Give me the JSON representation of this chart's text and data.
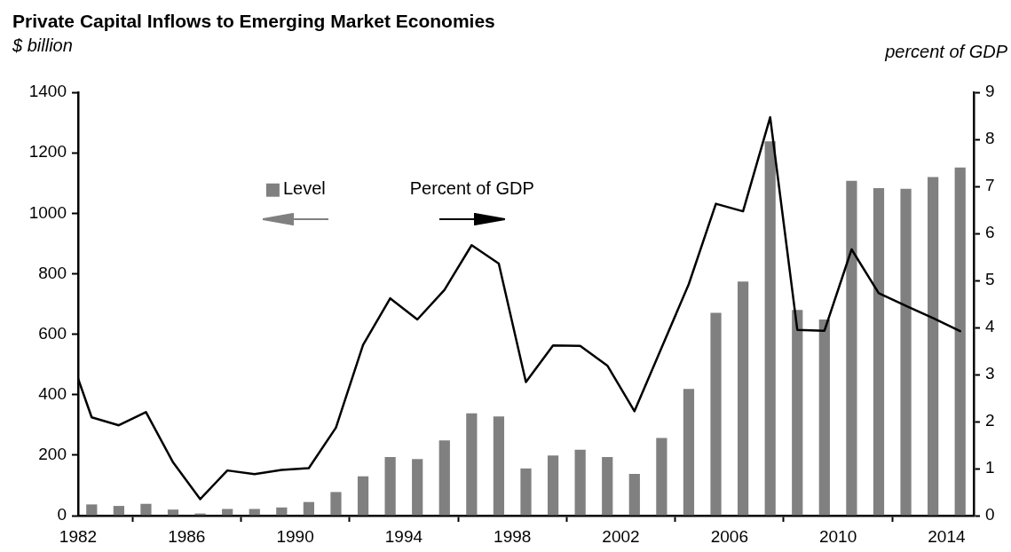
{
  "chart_data": {
    "type": "bar",
    "title": "Private Capital Inflows to Emerging Market Economies",
    "ylabel": "$ billion",
    "y2label": "percent of GDP",
    "xlim": [
      1982,
      2015
    ],
    "xticks": [
      1982,
      1986,
      1990,
      1994,
      1998,
      2002,
      2006,
      2010,
      2014
    ],
    "ylim": [
      0,
      1400
    ],
    "yticks": [
      0,
      200,
      400,
      600,
      800,
      1000,
      1200,
      1400
    ],
    "y2lim": [
      0,
      9
    ],
    "y2ticks": [
      0,
      1,
      2,
      3,
      4,
      5,
      6,
      7,
      8,
      9
    ],
    "legend": "top left",
    "grid": false,
    "series": [
      {
        "name": "Level",
        "color": "#808080",
        "x": [
          1982.5,
          1983.5,
          1984.5,
          1985.5,
          1986.5,
          1987.5,
          1988.5,
          1989.5,
          1990.5,
          1991.5,
          1992.5,
          1993.5,
          1994.5,
          1995.5,
          1996.5,
          1997.5,
          1998.5,
          1999.5,
          2000.5,
          2001.5,
          2002.5,
          2003.5,
          2004.5,
          2005.5,
          2006.5,
          2007.5,
          2008.5,
          2009.5,
          2010.5,
          2011.5,
          2012.5,
          2013.5,
          2014.5
        ],
        "values": [
          37,
          32,
          39,
          20,
          7,
          22,
          22,
          27,
          45,
          78,
          130,
          194,
          187,
          249,
          338,
          328,
          156,
          199,
          218,
          194,
          138,
          257,
          419,
          671,
          774,
          1238,
          680,
          649,
          1107,
          1083,
          1081,
          1120,
          1151
        ]
      },
      {
        "name": "Percent of GDP",
        "type": "line",
        "axis": "y2",
        "color": "#000000",
        "marker": "none",
        "line_style": "solid",
        "x": [
          1982,
          1982.5,
          1983.5,
          1984.5,
          1985.5,
          1986.5,
          1987.5,
          1988.5,
          1989.5,
          1990.5,
          1991.5,
          1992.5,
          1993.5,
          1994.5,
          1995.5,
          1996.5,
          1997.5,
          1998.5,
          1999.5,
          2000.5,
          2001.5,
          2002.5,
          2003.5,
          2004.5,
          2005.5,
          2006.5,
          2007.5,
          2008.5,
          2009.5,
          2010.5,
          2011.5,
          2012.5,
          2013.5,
          2014.5
        ],
        "values": [
          2.91,
          2.09,
          1.92,
          2.2,
          1.13,
          0.35,
          0.96,
          0.88,
          0.97,
          1.01,
          1.87,
          3.63,
          4.62,
          4.17,
          4.8,
          5.75,
          5.36,
          2.84,
          3.62,
          3.61,
          3.19,
          2.22,
          3.57,
          4.92,
          6.63,
          6.47,
          8.47,
          3.95,
          3.93,
          5.66,
          4.73,
          4.46,
          4.2,
          3.92
        ]
      }
    ]
  }
}
